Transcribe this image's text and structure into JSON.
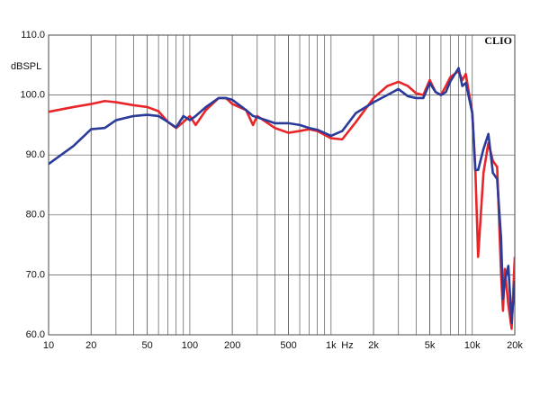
{
  "chart_data": {
    "type": "line",
    "y_label": "dBSPL",
    "x_label": "Hz",
    "brand": "CLIO",
    "log_x": true,
    "grid": true,
    "xlim": [
      10,
      20000
    ],
    "ylim": [
      60,
      110
    ],
    "xticks": [
      10,
      20,
      50,
      100,
      200,
      500,
      {
        "value": 1000,
        "label": "1k"
      },
      {
        "value": 2000,
        "label": "2k"
      },
      {
        "value": 5000,
        "label": "5k"
      },
      {
        "value": 10000,
        "label": "10k"
      },
      {
        "value": 20000,
        "label": "20k"
      }
    ],
    "yticks": [
      {
        "value": 60,
        "label": "60.0"
      },
      {
        "value": 70,
        "label": "70.0"
      },
      {
        "value": 80,
        "label": "80.0"
      },
      {
        "value": 90,
        "label": "90.0"
      },
      {
        "value": 100,
        "label": "100.0"
      },
      {
        "value": 110,
        "label": "110.0"
      }
    ],
    "x": [
      10,
      15,
      20,
      25,
      30,
      40,
      50,
      60,
      70,
      80,
      90,
      100,
      110,
      130,
      160,
      180,
      200,
      250,
      280,
      300,
      400,
      500,
      600,
      700,
      800,
      1000,
      1200,
      1500,
      2000,
      2500,
      3000,
      3500,
      4000,
      4500,
      5000,
      5500,
      6000,
      6500,
      7000,
      8000,
      8500,
      9000,
      10000,
      10500,
      11000,
      12000,
      13000,
      14000,
      15000,
      16000,
      16500,
      17000,
      18000,
      19000,
      20000
    ],
    "series": [
      {
        "color": "#e8262a",
        "values": [
          97.2,
          98.0,
          98.5,
          99.0,
          98.8,
          98.3,
          98.0,
          97.3,
          95.5,
          94.5,
          95.5,
          96.5,
          95.0,
          97.5,
          99.5,
          99.5,
          98.5,
          97.5,
          95.0,
          96.5,
          94.5,
          93.7,
          94.0,
          94.3,
          94.0,
          92.8,
          92.6,
          95.5,
          99.5,
          101.5,
          102.2,
          101.5,
          100.3,
          100.0,
          102.5,
          100.5,
          100.0,
          101.5,
          103.0,
          104.0,
          102.5,
          103.5,
          97,
          88,
          73,
          87,
          92,
          89,
          88,
          70,
          64,
          71,
          65,
          61,
          73
        ]
      },
      {
        "color": "#2a3b9a",
        "values": [
          88.5,
          91.5,
          94.3,
          94.5,
          95.8,
          96.5,
          96.7,
          96.5,
          95.5,
          94.6,
          96.5,
          95.8,
          96.5,
          98.0,
          99.5,
          99.5,
          99.2,
          97.5,
          96.5,
          96.3,
          95.3,
          95.3,
          95.0,
          94.5,
          94.2,
          93.2,
          94.0,
          97.0,
          98.8,
          100.0,
          101.0,
          99.8,
          99.5,
          99.5,
          102.0,
          100.5,
          100.0,
          100.5,
          102.3,
          104.5,
          101.5,
          102.0,
          97,
          87.5,
          87.5,
          91,
          93.5,
          87,
          86,
          76,
          66,
          69,
          71.5,
          62,
          69
        ]
      }
    ]
  }
}
